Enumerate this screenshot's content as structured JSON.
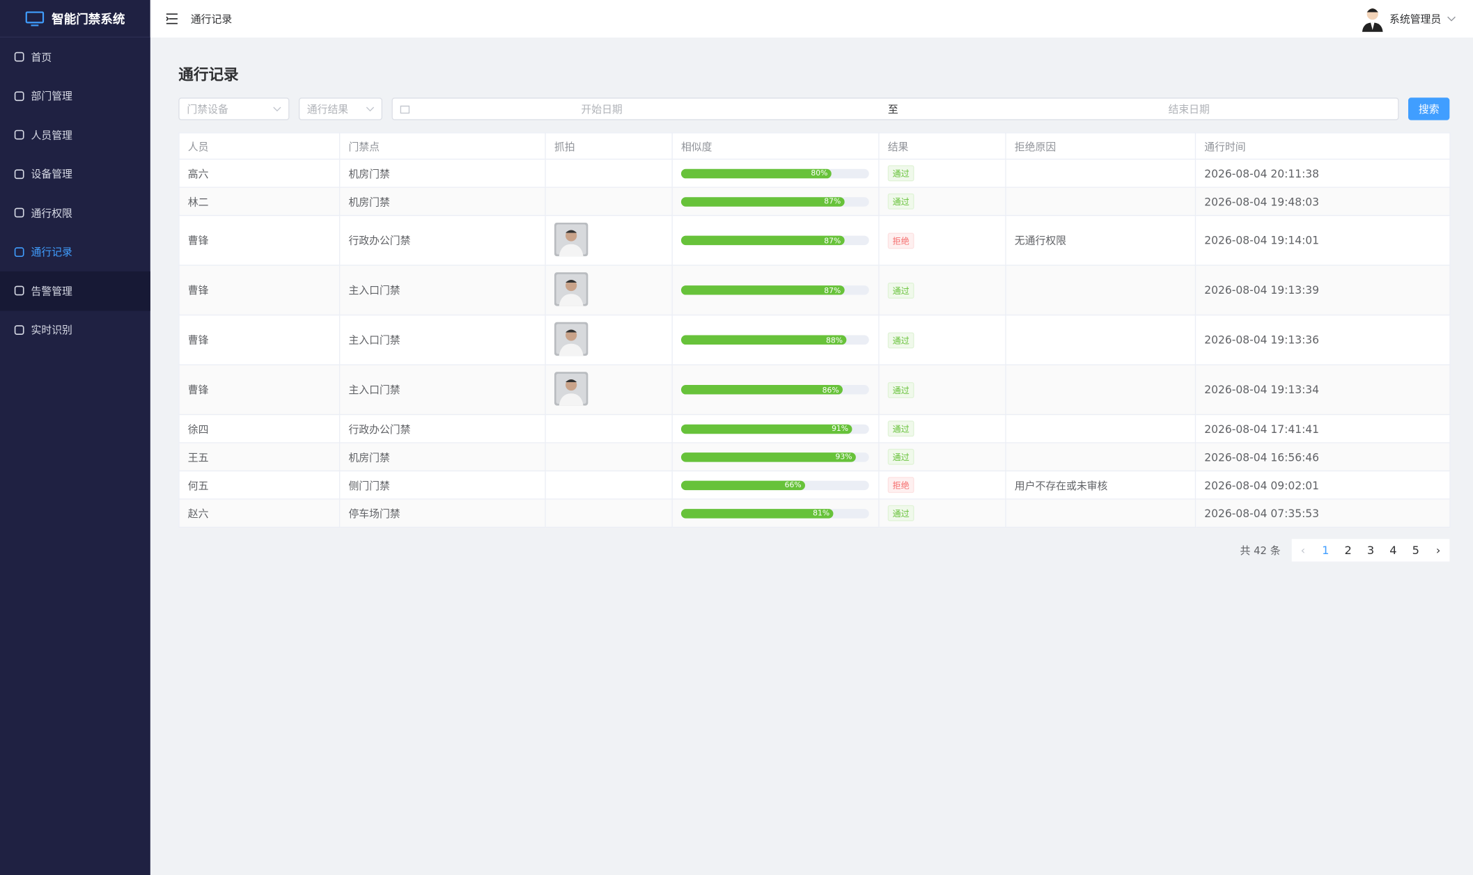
{
  "app": {
    "title": "智能门禁系统",
    "menu": [
      "首页",
      "部门管理",
      "人员管理",
      "设备管理",
      "通行权限",
      "通行记录",
      "告警管理",
      "实时识别"
    ]
  },
  "header": {
    "breadcrumb": "通行记录",
    "user": "系统管理员"
  },
  "page": {
    "title": "通行记录"
  },
  "filters": {
    "device": "门禁设备",
    "result": "通行结果",
    "start": "开始日期",
    "separator": "至",
    "end": "结束日期",
    "search": "搜索"
  },
  "table": {
    "columns": [
      "人员",
      "门禁点",
      "抓拍",
      "相似度",
      "结果",
      "拒绝原因",
      "通行时间"
    ],
    "rows": [
      {
        "person": "高六",
        "door": "机房门禁",
        "snapshot": false,
        "similarity": 80,
        "similarity_label": "80%",
        "result": "通过",
        "time": "2026-08-04 20:11:38"
      },
      {
        "person": "林二",
        "door": "机房门禁",
        "snapshot": false,
        "similarity": 87,
        "similarity_label": "87%",
        "result": "通过",
        "time": "2026-08-04 19:48:03"
      },
      {
        "person": "曹锋",
        "door": "行政办公门禁",
        "snapshot": true,
        "similarity": 87,
        "similarity_label": "87%",
        "result": "拒绝",
        "reason": "无通行权限",
        "time": "2026-08-04 19:14:01"
      },
      {
        "person": "曹锋",
        "door": "主入口门禁",
        "snapshot": true,
        "similarity": 87,
        "similarity_label": "87%",
        "result": "通过",
        "time": "2026-08-04 19:13:39"
      },
      {
        "person": "曹锋",
        "door": "主入口门禁",
        "snapshot": true,
        "similarity": 88,
        "similarity_label": "88%",
        "result": "通过",
        "time": "2026-08-04 19:13:36"
      },
      {
        "person": "曹锋",
        "door": "主入口门禁",
        "snapshot": true,
        "similarity": 86,
        "similarity_label": "86%",
        "result": "通过",
        "time": "2026-08-04 19:13:34"
      },
      {
        "person": "徐四",
        "door": "行政办公门禁",
        "snapshot": false,
        "similarity": 91,
        "similarity_label": "91%",
        "result": "通过",
        "time": "2026-08-04 17:41:41"
      },
      {
        "person": "王五",
        "door": "机房门禁",
        "snapshot": false,
        "similarity": 93,
        "similarity_label": "93%",
        "result": "通过",
        "time": "2026-08-04 16:56:46"
      },
      {
        "person": "何五",
        "door": "侧门门禁",
        "snapshot": false,
        "similarity": 66,
        "similarity_label": "66%",
        "result": "拒绝",
        "reason": "用户不存在或未审核",
        "time": "2026-08-04 09:02:01"
      },
      {
        "person": "赵六",
        "door": "停车场门禁",
        "snapshot": false,
        "similarity": 81,
        "similarity_label": "81%",
        "result": "通过",
        "time": "2026-08-04 07:35:53"
      }
    ]
  },
  "pagination": {
    "total": "共 42 条",
    "pages": [
      "1",
      "2",
      "3",
      "4",
      "5"
    ]
  }
}
